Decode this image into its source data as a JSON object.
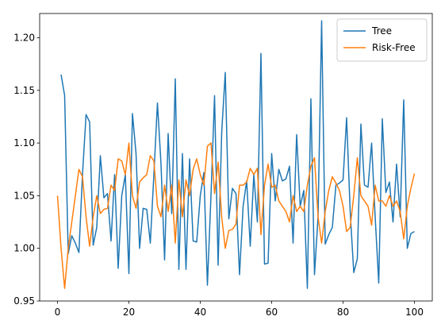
{
  "chart_data": {
    "type": "line",
    "x": [
      0,
      1,
      2,
      3,
      4,
      5,
      6,
      7,
      8,
      9,
      10,
      11,
      12,
      13,
      14,
      15,
      16,
      17,
      18,
      19,
      20,
      21,
      22,
      23,
      24,
      25,
      26,
      27,
      28,
      29,
      30,
      31,
      32,
      33,
      34,
      35,
      36,
      37,
      38,
      39,
      40,
      41,
      42,
      43,
      44,
      45,
      46,
      47,
      48,
      49,
      50,
      51,
      52,
      53,
      54,
      55,
      56,
      57,
      58,
      59,
      60,
      61,
      62,
      63,
      64,
      65,
      66,
      67,
      68,
      69,
      70,
      71,
      72,
      73,
      74,
      75,
      76,
      77,
      78,
      79,
      80,
      81,
      82,
      83,
      84,
      85,
      86,
      87,
      88,
      89,
      90,
      91,
      92,
      93,
      94,
      95,
      96,
      97,
      98,
      99,
      100
    ],
    "series": [
      {
        "name": "Tree",
        "color": "#1f77b4",
        "values": [
          null,
          1.165,
          1.145,
          0.995,
          1.012,
          1.005,
          0.996,
          1.07,
          1.127,
          1.12,
          1.003,
          1.02,
          1.088,
          1.048,
          1.052,
          1.007,
          1.07,
          0.981,
          1.05,
          1.07,
          0.976,
          1.128,
          1.09,
          1.0,
          1.038,
          1.037,
          1.005,
          1.07,
          1.138,
          1.08,
          0.989,
          1.109,
          1.033,
          1.161,
          0.98,
          1.09,
          0.98,
          1.085,
          1.007,
          1.006,
          1.05,
          1.072,
          0.965,
          1.05,
          1.145,
          0.984,
          1.11,
          1.167,
          1.028,
          1.057,
          1.052,
          0.975,
          1.04,
          1.064,
          1.002,
          1.07,
          1.025,
          1.185,
          0.985,
          0.986,
          1.09,
          1.045,
          1.075,
          1.064,
          1.066,
          1.078,
          1.005,
          1.108,
          1.04,
          1.055,
          0.962,
          1.142,
          0.975,
          1.03,
          1.216,
          1.004,
          1.013,
          1.02,
          1.06,
          1.062,
          1.065,
          1.124,
          1.035,
          0.977,
          0.99,
          1.118,
          1.06,
          1.058,
          1.1,
          1.03,
          0.967,
          1.123,
          1.053,
          1.063,
          1.025,
          1.08,
          1.03,
          1.141,
          1.0,
          1.014,
          1.016
        ]
      },
      {
        "name": "Risk-Free",
        "color": "#ff7f0e",
        "values": [
          1.05,
          1.0,
          0.962,
          1.0,
          1.025,
          1.05,
          1.075,
          1.068,
          1.03,
          1.002,
          1.03,
          1.05,
          1.033,
          1.037,
          1.038,
          1.06,
          1.055,
          1.085,
          1.083,
          1.07,
          1.1,
          1.05,
          1.038,
          1.063,
          1.067,
          1.07,
          1.088,
          1.083,
          1.04,
          1.03,
          1.06,
          1.035,
          1.06,
          1.005,
          1.065,
          1.03,
          1.065,
          1.05,
          1.075,
          1.085,
          1.07,
          1.06,
          1.097,
          1.1,
          1.052,
          1.082,
          1.03,
          1.0,
          1.017,
          1.018,
          1.023,
          1.06,
          1.06,
          1.063,
          1.076,
          1.07,
          1.076,
          1.013,
          1.06,
          1.08,
          1.058,
          1.06,
          1.045,
          1.04,
          1.035,
          1.025,
          1.05,
          1.035,
          1.04,
          1.035,
          1.06,
          1.078,
          1.086,
          1.03,
          1.005,
          1.035,
          1.055,
          1.068,
          1.062,
          1.055,
          1.04,
          1.016,
          1.02,
          1.05,
          1.086,
          1.05,
          1.045,
          1.04,
          1.022,
          1.06,
          1.045,
          1.045,
          1.04,
          1.05,
          1.04,
          1.045,
          1.035,
          1.009,
          1.04,
          1.057,
          1.071
        ]
      }
    ],
    "xlim": [
      -5,
      105
    ],
    "xticks": [
      0,
      20,
      40,
      60,
      80,
      100
    ],
    "ylim": [
      0.95,
      1.223
    ],
    "yticks": [
      0.95,
      {
        "value": 1.0,
        "label": "1.00"
      },
      1.05,
      {
        "value": 1.1,
        "label": "1.10"
      },
      1.15,
      {
        "value": 1.2,
        "label": "1.20"
      }
    ],
    "legend": "upper right"
  }
}
